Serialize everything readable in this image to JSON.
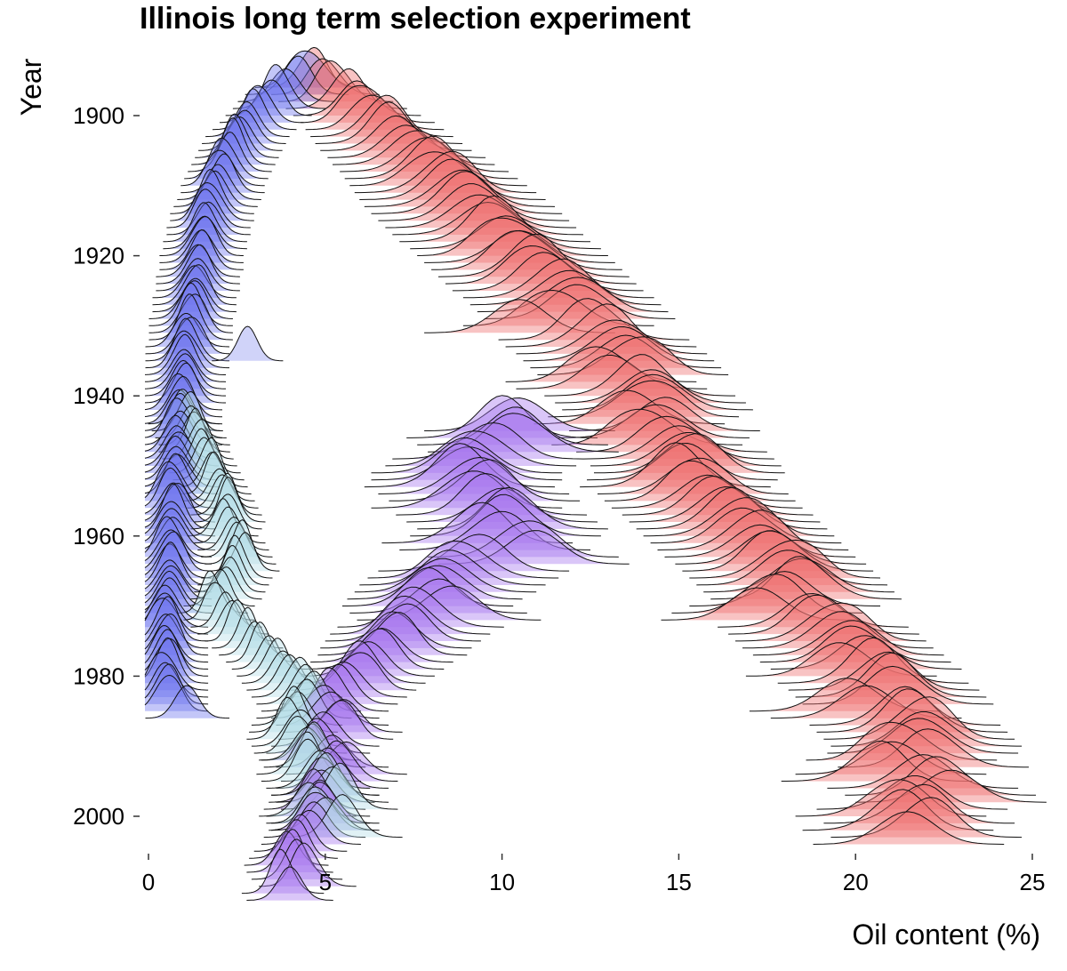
{
  "chart_data": {
    "type": "ridgeline",
    "title": "Illinois long term selection experiment",
    "xlabel": "Oil content (%)",
    "ylabel": "Year",
    "xlim": [
      0,
      25
    ],
    "xticks": [
      0,
      5,
      10,
      15,
      20,
      25
    ],
    "ylim": [
      1896,
      2005
    ],
    "yticks": [
      1900,
      1920,
      1940,
      1960,
      1980,
      2000
    ],
    "grid": false,
    "legend": "none",
    "series": [
      {
        "color": "#ef6f6f",
        "start_year": 1896,
        "means": [
          4.6,
          5.0,
          5.3,
          5.6,
          5.9,
          6.2,
          6.4,
          6.6,
          6.8,
          7.0,
          7.3,
          7.5,
          7.8,
          8.0,
          8.2,
          8.4,
          8.6,
          8.8,
          9.0,
          9.2,
          9.4,
          9.6,
          9.8,
          10.1,
          10.3,
          10.5,
          10.7,
          10.9,
          11.1,
          11.3,
          11.6,
          11.8,
          12.0,
          12.2,
          11.6,
          10.5,
          12.6,
          12.8,
          13.1,
          13.3,
          13.5,
          13.7,
          12.8,
          13.1,
          13.9,
          14.2,
          14.4,
          14.0,
          13.6,
          14.6,
          14.3,
          14.1,
          14.8,
          15.0,
          15.2,
          15.3,
          15.1,
          14.9,
          15.4,
          15.6,
          15.8,
          16.1,
          16.3,
          16.5,
          16.7,
          16.9,
          17.1,
          17.3,
          17.6,
          17.8,
          18.0,
          18.2,
          18.4,
          18.6,
          18.0,
          17.5,
          17.2,
          18.8,
          19.1,
          19.3,
          19.5,
          19.8,
          20.0,
          20.3,
          19.6,
          20.5,
          20.8,
          21.0,
          21.2,
          19.7,
          20.3,
          21.4,
          21.6,
          21.8,
          22.0,
          21.9,
          21.3,
          22.2,
          21.0,
          20.6,
          21.9,
          22.4,
          22.7,
          21.6,
          21.0,
          21.8,
          21.2,
          22.0,
          21.5
        ]
      },
      {
        "color": "#6f78ee",
        "start_year": 1896,
        "means": [
          4.6,
          4.2,
          3.9,
          3.7,
          3.4,
          3.2,
          3.0,
          2.8,
          2.7,
          2.6,
          2.5,
          2.4,
          2.3,
          2.2,
          2.1,
          2.1,
          2.0,
          1.9,
          1.8,
          1.8,
          1.7,
          1.7,
          1.6,
          1.6,
          1.5,
          1.5,
          1.5,
          1.4,
          1.4,
          1.4,
          1.3,
          1.3,
          1.3,
          1.2,
          1.2,
          1.2,
          1.2,
          1.1,
          1.1,
          1.1,
          1.1,
          1.0,
          1.0,
          1.0,
          1.0,
          1.0,
          0.9,
          0.9,
          0.9,
          0.9,
          0.9,
          0.9,
          0.8,
          0.8,
          0.8,
          0.8,
          0.8,
          0.8,
          0.8,
          0.7,
          0.7,
          0.7,
          0.7,
          0.7,
          0.7,
          0.7,
          0.7,
          0.6,
          0.6,
          0.6,
          0.6,
          0.6,
          0.6,
          0.6,
          0.6,
          0.6,
          0.5,
          0.5,
          0.5,
          0.5,
          0.5,
          0.5,
          0.5,
          0.5,
          0.5,
          0.5,
          0.5,
          0.5,
          0.5,
          0.5,
          1.1
        ]
      },
      {
        "color": "#a778ee",
        "start_year": 1945,
        "means": [
          10.5,
          10.0,
          10.3,
          10.6,
          9.6,
          9.4,
          9.0,
          9.0,
          8.8,
          9.2,
          9.5,
          9.0,
          9.7,
          10.0,
          10.3,
          10.1,
          9.3,
          9.8,
          10.6,
          10.9,
          9.2,
          8.9,
          8.6,
          8.4,
          8.1,
          7.9,
          8.2,
          8.5,
          7.7,
          7.4,
          7.2,
          7.0,
          6.9,
          6.6,
          6.4,
          6.2,
          6.0,
          5.8,
          5.6,
          5.4,
          5.2,
          5.0,
          5.2,
          5.5,
          5.3,
          5.0,
          4.8,
          4.6,
          5.2,
          5.6,
          5.4,
          5.2,
          5.0,
          4.9,
          4.7,
          4.8,
          5.0,
          4.9,
          4.7,
          4.6,
          4.3,
          4.1,
          3.9,
          4.0,
          4.2,
          4.5,
          3.8,
          4.0
        ]
      },
      {
        "color": "#b4dde6",
        "start_year": 1944,
        "means": [
          1.0,
          1.1,
          1.2,
          1.3,
          1.3,
          1.4,
          1.5,
          1.6,
          1.7,
          1.8,
          1.9,
          2.0,
          2.1,
          2.2,
          2.3,
          2.2,
          2.1,
          2.3,
          2.4,
          2.5,
          2.6,
          2.7,
          2.5,
          2.4,
          2.3,
          2.2,
          2.0,
          1.8,
          2.0,
          2.2,
          2.4,
          2.6,
          2.8,
          3.0,
          3.2,
          3.4,
          3.6,
          3.8,
          4.0,
          4.2,
          4.4,
          4.6,
          4.4,
          4.2,
          4.1,
          4.0,
          4.2,
          4.3,
          4.5,
          4.7,
          4.4,
          4.6,
          4.8,
          5.0,
          5.2,
          5.4,
          4.5,
          4.8,
          5.0,
          5.5
        ]
      },
      {
        "color": "#8f96f0",
        "start_year": 1935,
        "means": [
          2.8
        ]
      }
    ]
  }
}
